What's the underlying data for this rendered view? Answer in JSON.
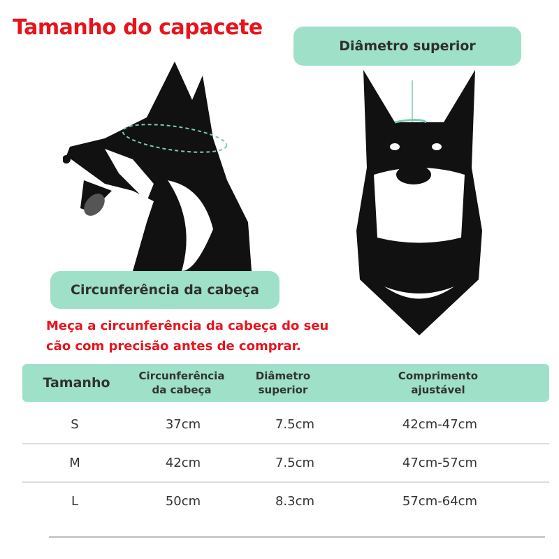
{
  "title": "Tamanho do capacete",
  "labels": {
    "top_diameter": "Diâmetro superior",
    "head_circumference": "Circunferência da cabeça"
  },
  "note": [
    "Meça a circunferência da cabeça do seu",
    "cão com precisão antes de comprar."
  ],
  "colors": {
    "accent": "#9ee0c8",
    "title": "#e8141c"
  },
  "table": {
    "headers": [
      "Tamanho",
      "Circunferência da cabeça",
      "Diâmetro superior",
      "Comprimento ajustável"
    ],
    "rows": [
      [
        "S",
        "37cm",
        "7.5cm",
        "42cm-47cm"
      ],
      [
        "M",
        "42cm",
        "7.5cm",
        "47cm-57cm"
      ],
      [
        "L",
        "50cm",
        "8.3cm",
        "57cm-64cm"
      ]
    ]
  }
}
